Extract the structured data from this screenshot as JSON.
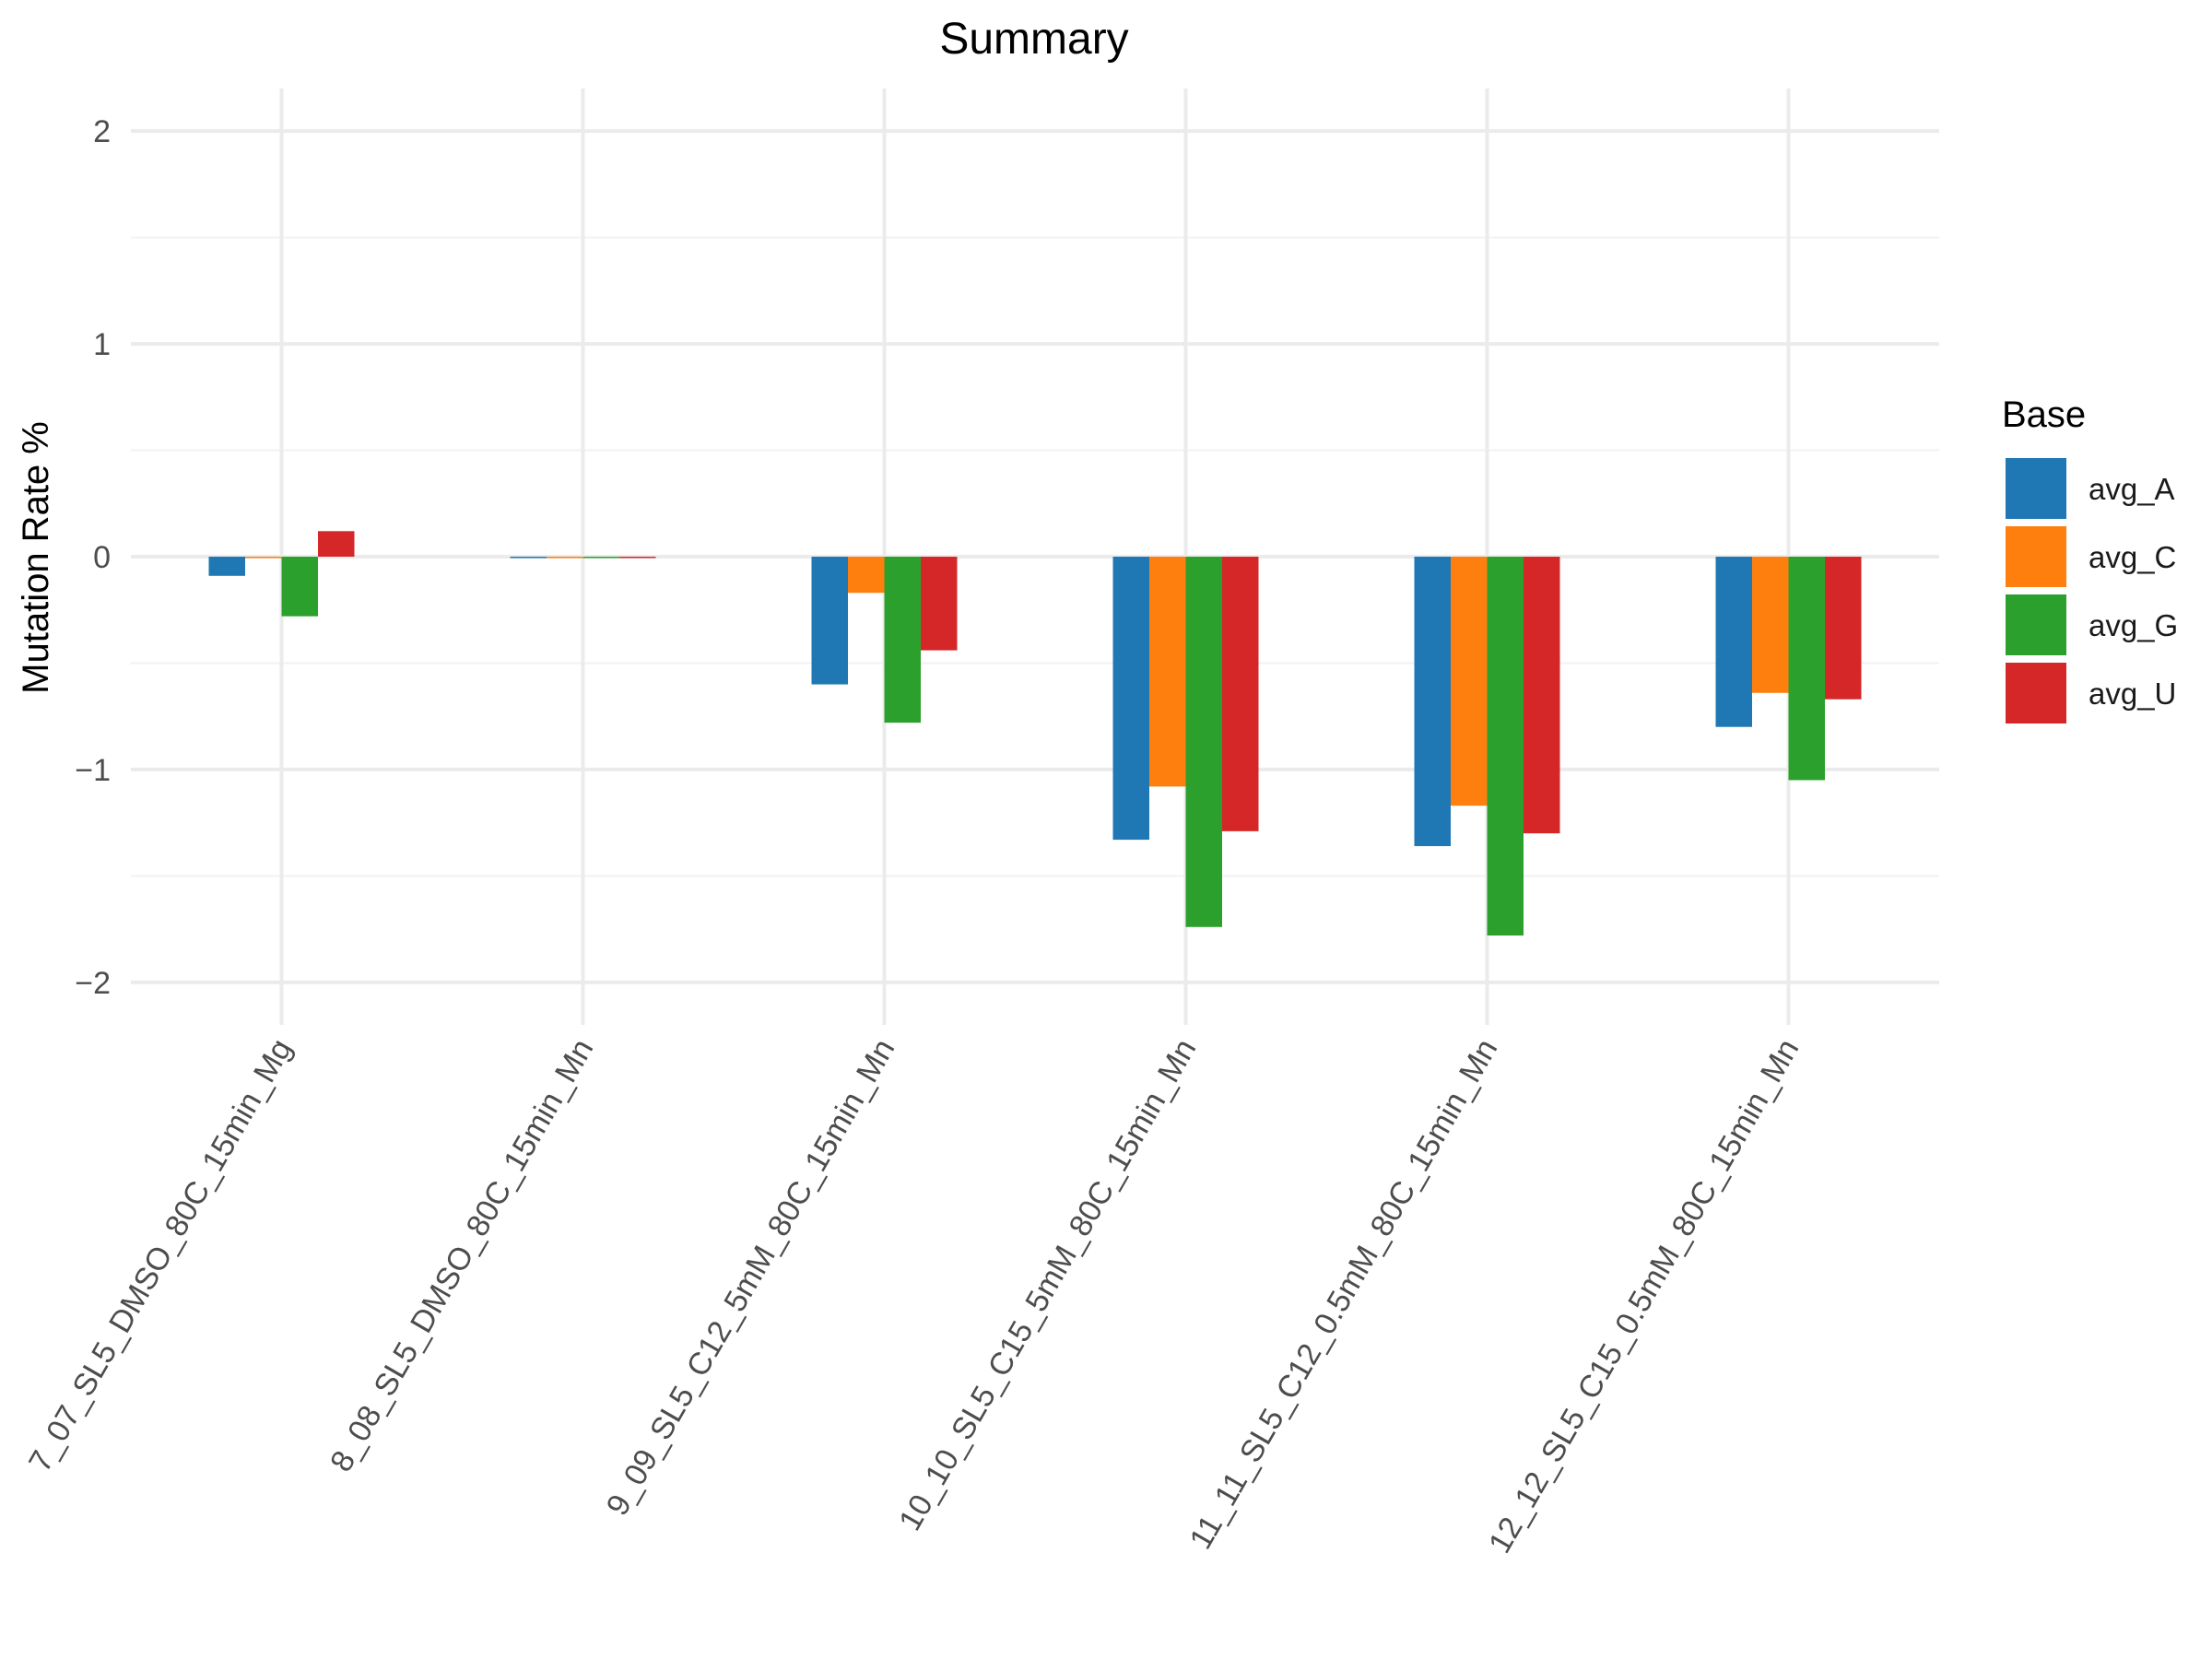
{
  "chart_data": {
    "type": "bar",
    "title": "Summary",
    "xlabel": "",
    "ylabel": "Mutation Rate %",
    "ylim": [
      -2.2,
      2.2
    ],
    "yticks": [
      -2,
      -1,
      0,
      1,
      2
    ],
    "ytick_labels": [
      "−2",
      "−1",
      "0",
      "1",
      "2"
    ],
    "grid": true,
    "legend": {
      "title": "Base",
      "position": "right"
    },
    "categories": [
      "7_07_SL5_DMSO_80C_15min_Mg",
      "8_08_SL5_DMSO_80C_15min_Mn",
      "9_09_SL5_C12_5mM_80C_15min_Mn",
      "10_10_SL5_C15_5mM_80C_15min_Mn",
      "11_11_SL5_C12_0.5mM_80C_15min_Mn",
      "12_12_SL5_C15_0.5mM_80C_15min_Mn"
    ],
    "series": [
      {
        "name": "avg_A",
        "color": "#1f77b4",
        "values": [
          -0.09,
          0.0,
          -0.6,
          -1.33,
          -1.36,
          -0.8
        ]
      },
      {
        "name": "avg_C",
        "color": "#ff7f0e",
        "values": [
          0.0,
          0.0,
          -0.17,
          -1.08,
          -1.17,
          -0.64
        ]
      },
      {
        "name": "avg_G",
        "color": "#2ca02c",
        "values": [
          -0.28,
          0.0,
          -0.78,
          -1.74,
          -1.78,
          -1.05
        ]
      },
      {
        "name": "avg_U",
        "color": "#d62728",
        "values": [
          0.12,
          0.0,
          -0.44,
          -1.29,
          -1.3,
          -0.67
        ]
      }
    ]
  }
}
